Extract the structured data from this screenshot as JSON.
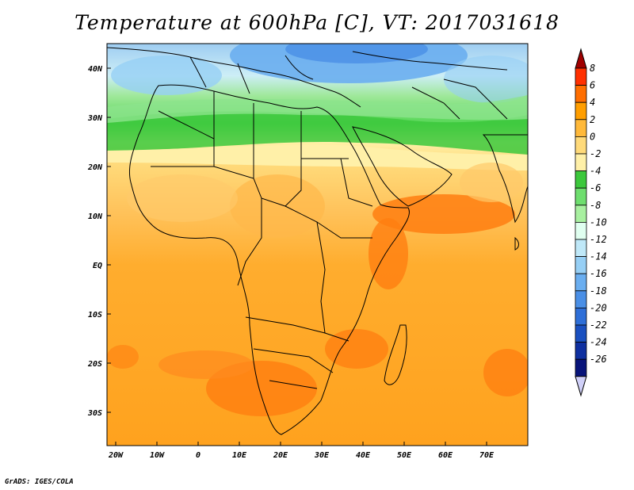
{
  "title": "Temperature at 600hPa [C], VT: 2017031618",
  "credit": "GrADS: IGES/COLA",
  "map": {
    "lon_range": [
      -22,
      80
    ],
    "lat_range": [
      -37,
      45
    ],
    "lon_ticks": [
      "20W",
      "10W",
      "0",
      "10E",
      "20E",
      "30E",
      "40E",
      "50E",
      "60E",
      "70E"
    ],
    "lat_ticks": [
      "40N",
      "30N",
      "20N",
      "10N",
      "EQ",
      "10S",
      "20S",
      "30S"
    ],
    "colorbar": {
      "labels": [
        "8",
        "6",
        "4",
        "2",
        "0",
        "-2",
        "-4",
        "-6",
        "-8",
        "-10",
        "-12",
        "-14",
        "-16",
        "-18",
        "-20",
        "-22",
        "-24",
        "-26"
      ],
      "colors": [
        "#a00000",
        "#ff3000",
        "#ff6e00",
        "#ff9e00",
        "#ffb93a",
        "#ffda7a",
        "#fff0a8",
        "#3cc83c",
        "#6ede6e",
        "#a8f0a0",
        "#e0fff0",
        "#bfe8f8",
        "#96cff5",
        "#6aaef0",
        "#4a8fe6",
        "#2e6fd8",
        "#1a50c0",
        "#0f30a0",
        "#08147a",
        "#d0d0f8"
      ]
    }
  }
}
